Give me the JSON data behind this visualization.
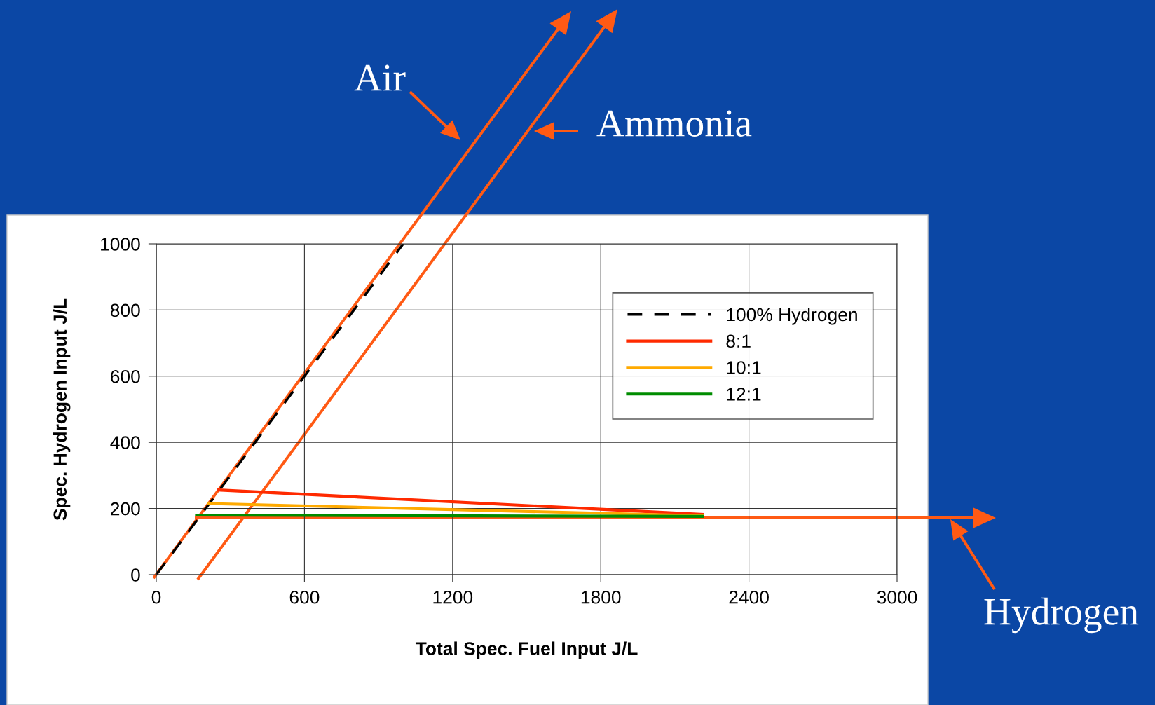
{
  "chart_data": {
    "type": "line",
    "xlabel": "Total Spec. Fuel Input J/L",
    "ylabel": "Spec. Hydrogen Input J/L",
    "xlim": [
      0,
      3000
    ],
    "xticks": [
      0,
      600,
      1200,
      1800,
      2400,
      3000
    ],
    "ylim": [
      0,
      1000
    ],
    "yticks": [
      0,
      200,
      400,
      600,
      800,
      1000
    ],
    "grid": true,
    "legend": "top right",
    "series": [
      {
        "name": "100% Hydrogen",
        "color": "#000000",
        "line_style": "dashed",
        "x": [
          0,
          1000
        ],
        "values": [
          0,
          1000
        ]
      },
      {
        "name": "8:1",
        "color": "#ff2a00",
        "line_style": "solid",
        "x": [
          253,
          2212
        ],
        "values": [
          256,
          182
        ]
      },
      {
        "name": "10:1",
        "color": "#ffaa00",
        "line_style": "solid",
        "x": [
          212,
          2212
        ],
        "values": [
          215,
          178
        ]
      },
      {
        "name": "12:1",
        "color": "#008c00",
        "line_style": "solid",
        "x": [
          163,
          2212
        ],
        "values": [
          180,
          176
        ]
      }
    ],
    "annotations": [
      "Air",
      "Ammonia",
      "Hydrogen"
    ]
  }
}
